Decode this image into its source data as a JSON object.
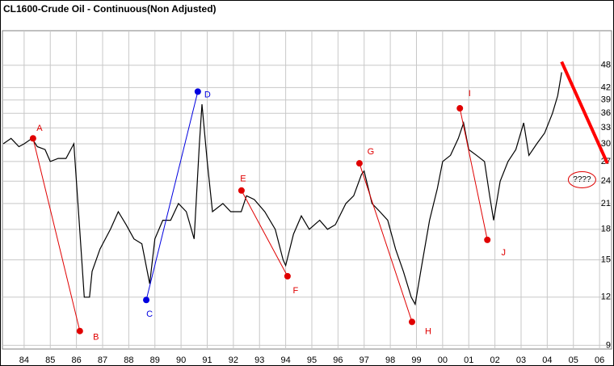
{
  "chart_data": {
    "type": "line",
    "title": "CL1600-Crude Oil - Continuous(Non Adjusted)",
    "log_scale": true,
    "grid": true,
    "xlim": [
      1983.17,
      2006.46
    ],
    "xticks": [
      {
        "value": 1984,
        "label": "84"
      },
      {
        "value": 1985,
        "label": "85"
      },
      {
        "value": 1986,
        "label": "86"
      },
      {
        "value": 1987,
        "label": "87"
      },
      {
        "value": 1988,
        "label": "88"
      },
      {
        "value": 1989,
        "label": "89"
      },
      {
        "value": 1990,
        "label": "90"
      },
      {
        "value": 1991,
        "label": "91"
      },
      {
        "value": 1992,
        "label": "92"
      },
      {
        "value": 1993,
        "label": "93"
      },
      {
        "value": 1994,
        "label": "94"
      },
      {
        "value": 1995,
        "label": "95"
      },
      {
        "value": 1996,
        "label": "96"
      },
      {
        "value": 1997,
        "label": "97"
      },
      {
        "value": 1998,
        "label": "98"
      },
      {
        "value": 1999,
        "label": "99"
      },
      {
        "value": 2000,
        "label": "00"
      },
      {
        "value": 2001,
        "label": "01"
      },
      {
        "value": 2002,
        "label": "02"
      },
      {
        "value": 2003,
        "label": "03"
      },
      {
        "value": 2004,
        "label": "04"
      },
      {
        "value": 2005,
        "label": "05"
      },
      {
        "value": 2006,
        "label": "06"
      }
    ],
    "ylim": [
      8.8,
      59
    ],
    "yticks": [
      9,
      12,
      15,
      18,
      21,
      24,
      27,
      30,
      33,
      36,
      39,
      42,
      48
    ],
    "series": [
      {
        "color": "#000000",
        "x": [
          1983.2,
          1983.5,
          1983.8,
          1984.0,
          1984.3,
          1984.5,
          1984.8,
          1985.0,
          1985.3,
          1985.6,
          1985.9,
          1986.1,
          1986.3,
          1986.5,
          1986.6,
          1986.9,
          1987.3,
          1987.6,
          1987.9,
          1988.2,
          1988.5,
          1988.8,
          1989.0,
          1989.3,
          1989.6,
          1989.9,
          1990.2,
          1990.5,
          1990.7,
          1990.8,
          1991.0,
          1991.2,
          1991.6,
          1991.9,
          1992.3,
          1992.5,
          1992.8,
          1993.2,
          1993.6,
          1993.9,
          1994.0,
          1994.3,
          1994.6,
          1994.9,
          1995.3,
          1995.6,
          1995.9,
          1996.3,
          1996.6,
          1996.9,
          1997.0,
          1997.3,
          1997.6,
          1997.9,
          1998.2,
          1998.5,
          1998.8,
          1998.95,
          1999.2,
          1999.5,
          1999.8,
          2000.0,
          2000.3,
          2000.6,
          2000.8,
          2001.0,
          2001.3,
          2001.6,
          2001.8,
          2001.95,
          2002.2,
          2002.5,
          2002.8,
          2003.1,
          2003.3,
          2003.6,
          2003.9,
          2004.2,
          2004.4,
          2004.55
        ],
        "values": [
          30,
          31,
          29.5,
          30,
          31,
          29.5,
          29,
          27,
          27.5,
          27.5,
          30,
          19,
          12,
          12,
          14,
          16,
          18,
          20,
          18.5,
          17,
          16.5,
          13,
          17,
          19,
          19,
          21,
          20,
          17,
          30,
          38,
          27,
          20,
          21,
          20,
          20,
          22,
          21.5,
          20,
          18,
          15,
          14.5,
          17.5,
          19.5,
          18,
          19,
          18,
          18.5,
          21,
          22,
          25,
          25.5,
          21,
          20,
          19,
          16,
          14,
          12,
          11.5,
          14.5,
          19,
          23,
          27,
          28,
          31,
          34,
          29,
          28,
          27,
          22,
          19,
          24,
          27,
          29,
          34,
          28,
          30,
          32,
          36,
          40,
          46
        ]
      }
    ],
    "points": [
      {
        "label": "A",
        "x": 1984.34,
        "y": 31,
        "color": "#e00000"
      },
      {
        "label": "B",
        "x": 1986.13,
        "y": 9.8,
        "color": "#e00000"
      },
      {
        "label": "C",
        "x": 1988.67,
        "y": 11.8,
        "color": "#0000e0"
      },
      {
        "label": "D",
        "x": 1990.64,
        "y": 41,
        "color": "#0000e0"
      },
      {
        "label": "E",
        "x": 1992.31,
        "y": 22.7,
        "color": "#e00000"
      },
      {
        "label": "F",
        "x": 1994.07,
        "y": 13.6,
        "color": "#e00000"
      },
      {
        "label": "G",
        "x": 1996.82,
        "y": 26.7,
        "color": "#e00000"
      },
      {
        "label": "H",
        "x": 1998.83,
        "y": 10.35,
        "color": "#e00000"
      },
      {
        "label": "I",
        "x": 2000.66,
        "y": 37.1,
        "color": "#e00000"
      },
      {
        "label": "J",
        "x": 2001.71,
        "y": 16.9,
        "color": "#e00000"
      }
    ],
    "trend_line": {
      "x": [
        2004.55,
        2006.3
      ],
      "values": [
        49,
        26.7
      ],
      "color": "#ff0000"
    },
    "annotation": {
      "text": "????",
      "x": 2005.33,
      "y": 24.2,
      "color": "#e00000"
    }
  }
}
